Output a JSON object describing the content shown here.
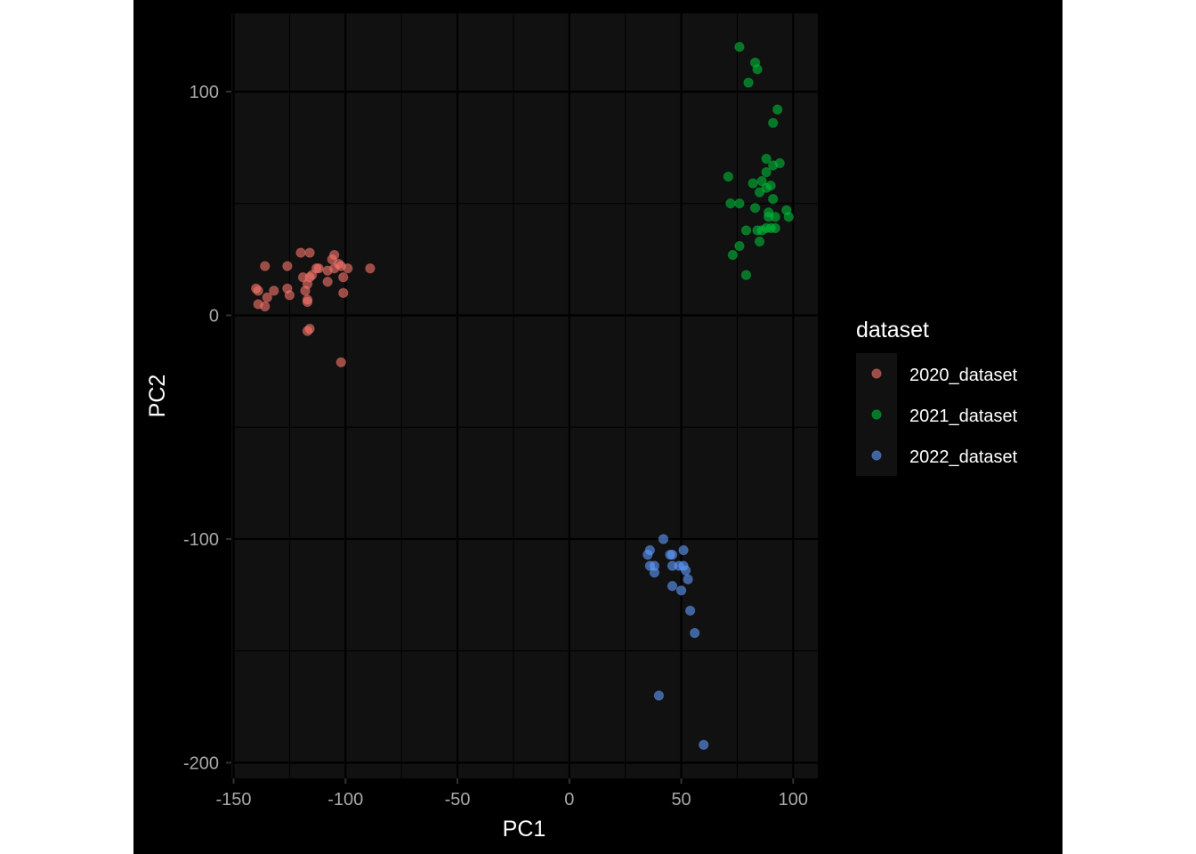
{
  "chart_data": {
    "type": "scatter",
    "xlabel": "PC1",
    "ylabel": "PC2",
    "xlim": [
      -151,
      111
    ],
    "ylim": [
      -207,
      135
    ],
    "x_ticks": [
      -150,
      -100,
      -50,
      0,
      50,
      100
    ],
    "y_ticks": [
      -200,
      -100,
      0,
      100
    ],
    "x_tick_labels": [
      "-150",
      "-100",
      "-50",
      "0",
      "50",
      "100"
    ],
    "y_tick_labels": [
      "-200",
      "-100",
      "0",
      "100"
    ],
    "grid": true,
    "theme": "dark",
    "legend": {
      "title": "dataset",
      "position": "right"
    },
    "series": [
      {
        "name": "2020_dataset",
        "color": "#F8766D",
        "points": [
          [
            -140,
            12
          ],
          [
            -139,
            11
          ],
          [
            -139,
            5
          ],
          [
            -136,
            22
          ],
          [
            -136,
            4
          ],
          [
            -135,
            8
          ],
          [
            -132,
            11
          ],
          [
            -126,
            22
          ],
          [
            -126,
            12
          ],
          [
            -125,
            9
          ],
          [
            -120,
            28
          ],
          [
            -119,
            17
          ],
          [
            -118,
            11
          ],
          [
            -117,
            14
          ],
          [
            -116,
            28
          ],
          [
            -117,
            7
          ],
          [
            -117,
            6
          ],
          [
            -116,
            17
          ],
          [
            -115,
            18
          ],
          [
            -113,
            21
          ],
          [
            -112,
            21
          ],
          [
            -117,
            -7
          ],
          [
            -116,
            -6
          ],
          [
            -108,
            20
          ],
          [
            -108,
            15
          ],
          [
            -106,
            25
          ],
          [
            -105,
            27
          ],
          [
            -105,
            21
          ],
          [
            -103,
            23
          ],
          [
            -102,
            22
          ],
          [
            -101,
            17
          ],
          [
            -101,
            10
          ],
          [
            -99,
            21
          ],
          [
            -89,
            21
          ],
          [
            -102,
            -21
          ]
        ]
      },
      {
        "name": "2021_dataset",
        "color": "#00BA38",
        "points": [
          [
            76,
            120
          ],
          [
            80,
            104
          ],
          [
            83,
            113
          ],
          [
            84,
            110
          ],
          [
            91,
            86
          ],
          [
            93,
            92
          ],
          [
            71,
            62
          ],
          [
            72,
            50
          ],
          [
            76,
            50
          ],
          [
            76,
            31
          ],
          [
            73,
            27
          ],
          [
            79,
            38
          ],
          [
            79,
            18
          ],
          [
            82,
            59
          ],
          [
            83,
            48
          ],
          [
            84,
            38
          ],
          [
            85,
            55
          ],
          [
            85,
            33
          ],
          [
            86,
            60
          ],
          [
            86,
            38
          ],
          [
            88,
            57
          ],
          [
            88,
            39
          ],
          [
            88,
            70
          ],
          [
            88,
            64
          ],
          [
            89,
            46
          ],
          [
            89,
            44
          ],
          [
            90,
            58
          ],
          [
            90,
            39
          ],
          [
            91,
            52
          ],
          [
            91,
            67
          ],
          [
            92,
            44
          ],
          [
            92,
            39
          ],
          [
            94,
            68
          ],
          [
            97,
            47
          ],
          [
            98,
            44
          ]
        ]
      },
      {
        "name": "2022_dataset",
        "color": "#619CFF",
        "points": [
          [
            35,
            -107
          ],
          [
            36,
            -105
          ],
          [
            36,
            -112
          ],
          [
            38,
            -115
          ],
          [
            38,
            -112
          ],
          [
            42,
            -100
          ],
          [
            45,
            -107
          ],
          [
            46,
            -107
          ],
          [
            46,
            -112
          ],
          [
            46,
            -121
          ],
          [
            49,
            -112
          ],
          [
            50,
            -123
          ],
          [
            51,
            -112
          ],
          [
            51,
            -105
          ],
          [
            52,
            -114
          ],
          [
            53,
            -118
          ],
          [
            54,
            -132
          ],
          [
            56,
            -142
          ],
          [
            40,
            -170
          ],
          [
            60,
            -192
          ]
        ]
      }
    ]
  }
}
